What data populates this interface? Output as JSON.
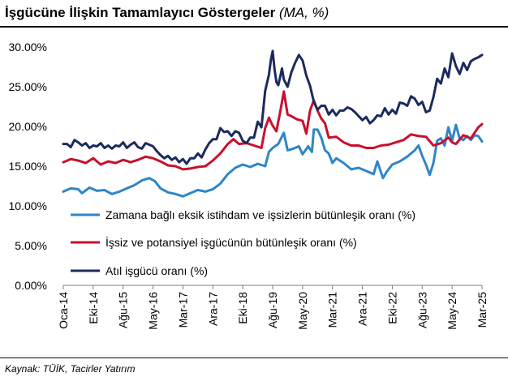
{
  "header": {
    "title": "İşgücüne İlişkin Tamamlayıcı Göstergeler",
    "title_unit": "(MA, %)"
  },
  "footer": {
    "source": "Kaynak: TÜİK, Tacirler Yatırım"
  },
  "chart_data": {
    "type": "line",
    "title": "İşgücüne İlişkin Tamamlayıcı Göstergeler (MA, %)",
    "ylim": [
      0,
      30
    ],
    "y_ticks": [
      0,
      5,
      10,
      15,
      20,
      25,
      30
    ],
    "y_tick_labels": [
      "0.00%",
      "5.00%",
      "10.00%",
      "15.00%",
      "20.00%",
      "25.00%",
      "30.00%"
    ],
    "x_tick_labels": [
      "Oca-14",
      "Eki-14",
      "Ağu-15",
      "May-16",
      "Mar-17",
      "Ara-17",
      "Eki-18",
      "Ağu-19",
      "May-20",
      "Mar-21",
      "Ara-21",
      "Eki-22",
      "Ağu-23",
      "May-24",
      "Mar-25"
    ],
    "grid": false,
    "legend_position": "inside-bottom-left",
    "series": [
      {
        "name": "Zamana bağlı eksik istihdam ve işsizlerin bütünleşik oranı (%)",
        "color": "#2e86c8",
        "points": [
          [
            0,
            11.8
          ],
          [
            4,
            12.2
          ],
          [
            8,
            12.1
          ],
          [
            10,
            11.6
          ],
          [
            14,
            12.3
          ],
          [
            18,
            11.9
          ],
          [
            22,
            12.0
          ],
          [
            26,
            11.5
          ],
          [
            30,
            11.8
          ],
          [
            34,
            12.2
          ],
          [
            38,
            12.6
          ],
          [
            42,
            13.2
          ],
          [
            46,
            13.5
          ],
          [
            49,
            13.1
          ],
          [
            52,
            12.2
          ],
          [
            56,
            11.7
          ],
          [
            60,
            11.5
          ],
          [
            64,
            11.2
          ],
          [
            68,
            11.6
          ],
          [
            72,
            12.0
          ],
          [
            76,
            11.8
          ],
          [
            80,
            12.1
          ],
          [
            84,
            12.8
          ],
          [
            88,
            14.0
          ],
          [
            92,
            14.8
          ],
          [
            96,
            15.2
          ],
          [
            100,
            14.9
          ],
          [
            104,
            15.3
          ],
          [
            108,
            15.0
          ],
          [
            110,
            16.8
          ],
          [
            112,
            17.3
          ],
          [
            115,
            17.8
          ],
          [
            118,
            19.2
          ],
          [
            120,
            17.0
          ],
          [
            123,
            17.2
          ],
          [
            126,
            17.5
          ],
          [
            128,
            16.5
          ],
          [
            131,
            17.5
          ],
          [
            133,
            16.8
          ],
          [
            134,
            19.6
          ],
          [
            136,
            19.6
          ],
          [
            138,
            18.6
          ],
          [
            140,
            17.0
          ],
          [
            142,
            16.6
          ],
          [
            144,
            15.4
          ],
          [
            146,
            16.0
          ],
          [
            150,
            15.4
          ],
          [
            154,
            14.6
          ],
          [
            158,
            14.8
          ],
          [
            162,
            14.4
          ],
          [
            166,
            14.0
          ],
          [
            168,
            15.6
          ],
          [
            171,
            13.5
          ],
          [
            173,
            14.3
          ],
          [
            176,
            15.2
          ],
          [
            180,
            15.6
          ],
          [
            184,
            16.2
          ],
          [
            188,
            17.0
          ],
          [
            190,
            17.6
          ],
          [
            192,
            16.3
          ],
          [
            194,
            15.2
          ],
          [
            196,
            13.9
          ],
          [
            198,
            15.4
          ],
          [
            200,
            18.2
          ],
          [
            202,
            18.5
          ],
          [
            204,
            17.6
          ],
          [
            206,
            19.9
          ],
          [
            208,
            18.2
          ],
          [
            210,
            20.2
          ],
          [
            212,
            18.5
          ],
          [
            214,
            18.3
          ],
          [
            216,
            18.8
          ],
          [
            218,
            18.3
          ],
          [
            220,
            18.9
          ],
          [
            222,
            18.8
          ],
          [
            224,
            18.1
          ]
        ]
      },
      {
        "name": "İşsiz ve potansiyel işgücünün bütünleşik oranı (%)",
        "color": "#c8102e",
        "points": [
          [
            0,
            15.5
          ],
          [
            4,
            15.9
          ],
          [
            8,
            15.7
          ],
          [
            12,
            15.4
          ],
          [
            16,
            16.0
          ],
          [
            20,
            15.2
          ],
          [
            24,
            15.6
          ],
          [
            28,
            15.4
          ],
          [
            32,
            15.8
          ],
          [
            36,
            15.5
          ],
          [
            40,
            15.8
          ],
          [
            44,
            16.2
          ],
          [
            48,
            16.0
          ],
          [
            52,
            15.6
          ],
          [
            56,
            15.1
          ],
          [
            60,
            15.0
          ],
          [
            64,
            14.6
          ],
          [
            68,
            14.7
          ],
          [
            72,
            14.9
          ],
          [
            76,
            15.0
          ],
          [
            80,
            15.7
          ],
          [
            84,
            16.6
          ],
          [
            88,
            17.8
          ],
          [
            91,
            18.4
          ],
          [
            94,
            17.8
          ],
          [
            98,
            17.9
          ],
          [
            102,
            17.6
          ],
          [
            106,
            17.3
          ],
          [
            108,
            19.8
          ],
          [
            110,
            21.1
          ],
          [
            112,
            20.1
          ],
          [
            114,
            19.4
          ],
          [
            116,
            21.8
          ],
          [
            118,
            24.4
          ],
          [
            120,
            21.5
          ],
          [
            122,
            21.3
          ],
          [
            125,
            20.9
          ],
          [
            128,
            20.7
          ],
          [
            130,
            19.1
          ],
          [
            132,
            22.0
          ],
          [
            134,
            23.3
          ],
          [
            136,
            22.0
          ],
          [
            138,
            21.0
          ],
          [
            140,
            20.4
          ],
          [
            142,
            18.6
          ],
          [
            146,
            18.7
          ],
          [
            150,
            18.0
          ],
          [
            154,
            17.6
          ],
          [
            158,
            17.6
          ],
          [
            162,
            17.3
          ],
          [
            166,
            17.3
          ],
          [
            170,
            17.6
          ],
          [
            174,
            17.7
          ],
          [
            178,
            18.0
          ],
          [
            182,
            18.3
          ],
          [
            186,
            19.0
          ],
          [
            190,
            18.8
          ],
          [
            194,
            18.7
          ],
          [
            198,
            17.6
          ],
          [
            202,
            17.9
          ],
          [
            206,
            18.6
          ],
          [
            208,
            18.0
          ],
          [
            210,
            17.8
          ],
          [
            214,
            18.9
          ],
          [
            218,
            18.5
          ],
          [
            222,
            19.9
          ],
          [
            224,
            20.3
          ]
        ]
      },
      {
        "name": "Atıl işgücü oranı (%)",
        "color": "#1c2b5e",
        "points": [
          [
            0,
            17.8
          ],
          [
            2,
            17.8
          ],
          [
            4,
            17.4
          ],
          [
            6,
            18.3
          ],
          [
            8,
            18.0
          ],
          [
            10,
            17.6
          ],
          [
            12,
            17.9
          ],
          [
            14,
            17.3
          ],
          [
            16,
            17.6
          ],
          [
            18,
            17.5
          ],
          [
            20,
            17.9
          ],
          [
            22,
            17.3
          ],
          [
            24,
            17.6
          ],
          [
            26,
            17.2
          ],
          [
            28,
            17.6
          ],
          [
            30,
            17.5
          ],
          [
            32,
            18.0
          ],
          [
            34,
            17.3
          ],
          [
            36,
            17.7
          ],
          [
            38,
            18.0
          ],
          [
            40,
            17.4
          ],
          [
            42,
            17.2
          ],
          [
            44,
            17.9
          ],
          [
            46,
            17.7
          ],
          [
            48,
            17.5
          ],
          [
            50,
            16.9
          ],
          [
            52,
            16.4
          ],
          [
            54,
            16.0
          ],
          [
            56,
            16.3
          ],
          [
            58,
            15.8
          ],
          [
            60,
            16.1
          ],
          [
            62,
            15.5
          ],
          [
            64,
            15.9
          ],
          [
            66,
            15.3
          ],
          [
            68,
            16.0
          ],
          [
            70,
            16.0
          ],
          [
            72,
            16.6
          ],
          [
            74,
            16.1
          ],
          [
            76,
            17.1
          ],
          [
            78,
            17.9
          ],
          [
            80,
            18.4
          ],
          [
            82,
            18.4
          ],
          [
            84,
            19.8
          ],
          [
            86,
            19.3
          ],
          [
            88,
            19.4
          ],
          [
            90,
            18.8
          ],
          [
            92,
            19.4
          ],
          [
            94,
            19.2
          ],
          [
            96,
            18.2
          ],
          [
            98,
            17.9
          ],
          [
            100,
            18.6
          ],
          [
            102,
            18.6
          ],
          [
            104,
            20.6
          ],
          [
            106,
            19.9
          ],
          [
            108,
            24.5
          ],
          [
            110,
            26.5
          ],
          [
            111,
            28.3
          ],
          [
            112,
            29.5
          ],
          [
            113,
            27.2
          ],
          [
            114,
            25.6
          ],
          [
            115,
            25.2
          ],
          [
            116,
            26.2
          ],
          [
            117,
            27.3
          ],
          [
            118,
            25.9
          ],
          [
            120,
            25.0
          ],
          [
            122,
            26.8
          ],
          [
            124,
            28.0
          ],
          [
            126,
            29.0
          ],
          [
            128,
            28.3
          ],
          [
            130,
            26.4
          ],
          [
            132,
            25.1
          ],
          [
            134,
            23.1
          ],
          [
            136,
            22.1
          ],
          [
            138,
            22.6
          ],
          [
            140,
            22.6
          ],
          [
            142,
            21.5
          ],
          [
            144,
            22.1
          ],
          [
            146,
            21.4
          ],
          [
            148,
            22.0
          ],
          [
            150,
            22.0
          ],
          [
            152,
            22.4
          ],
          [
            154,
            22.2
          ],
          [
            156,
            21.8
          ],
          [
            158,
            21.3
          ],
          [
            160,
            20.8
          ],
          [
            162,
            21.2
          ],
          [
            164,
            20.4
          ],
          [
            166,
            20.8
          ],
          [
            168,
            21.4
          ],
          [
            170,
            21.3
          ],
          [
            172,
            22.3
          ],
          [
            174,
            21.5
          ],
          [
            176,
            22.1
          ],
          [
            178,
            21.6
          ],
          [
            180,
            23.0
          ],
          [
            182,
            22.9
          ],
          [
            184,
            22.6
          ],
          [
            186,
            23.8
          ],
          [
            188,
            23.5
          ],
          [
            190,
            22.7
          ],
          [
            192,
            23.1
          ],
          [
            194,
            21.8
          ],
          [
            196,
            22.0
          ],
          [
            198,
            23.7
          ],
          [
            200,
            26.0
          ],
          [
            202,
            25.4
          ],
          [
            204,
            27.3
          ],
          [
            206,
            26.2
          ],
          [
            208,
            29.2
          ],
          [
            210,
            27.6
          ],
          [
            212,
            26.6
          ],
          [
            214,
            28.0
          ],
          [
            216,
            27.1
          ],
          [
            218,
            28.2
          ],
          [
            220,
            28.5
          ],
          [
            222,
            28.7
          ],
          [
            224,
            29.0
          ]
        ]
      }
    ]
  }
}
